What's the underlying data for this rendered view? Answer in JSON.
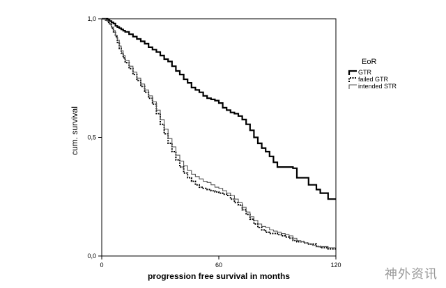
{
  "chart_data": {
    "type": "line",
    "step": true,
    "xlabel": "progression free survival in months",
    "ylabel": "cum. survival",
    "xlim": [
      0,
      120
    ],
    "ylim": [
      0,
      1
    ],
    "x_ticks": [
      0,
      60,
      120
    ],
    "x_tick_labels": [
      "0",
      "60",
      "120"
    ],
    "y_ticks": [
      0,
      0.5,
      1
    ],
    "y_tick_labels": [
      "0,0",
      "0,5",
      "1,0"
    ],
    "grid": false,
    "legend_title": "EoR",
    "legend_position": "right",
    "series": [
      {
        "name": "GTR",
        "style": "solid-thick",
        "color": "#000000",
        "x": [
          0,
          1,
          2,
          3,
          4,
          5,
          6,
          7,
          8,
          9,
          10,
          11,
          12,
          14,
          16,
          18,
          20,
          22,
          24,
          26,
          28,
          30,
          32,
          34,
          36,
          38,
          40,
          42,
          44,
          46,
          48,
          50,
          52,
          54,
          56,
          58,
          60,
          62,
          64,
          66,
          68,
          70,
          72,
          74,
          76,
          78,
          80,
          82,
          84,
          86,
          88,
          90,
          92,
          94,
          96,
          98,
          100,
          102,
          104,
          106,
          108,
          110,
          112,
          114,
          116,
          118,
          120
        ],
        "y": [
          1.0,
          1.0,
          1.0,
          0.995,
          0.99,
          0.985,
          0.98,
          0.97,
          0.965,
          0.96,
          0.955,
          0.95,
          0.945,
          0.935,
          0.925,
          0.915,
          0.905,
          0.895,
          0.88,
          0.87,
          0.86,
          0.845,
          0.83,
          0.82,
          0.8,
          0.78,
          0.765,
          0.745,
          0.73,
          0.71,
          0.7,
          0.69,
          0.675,
          0.665,
          0.66,
          0.655,
          0.645,
          0.625,
          0.615,
          0.605,
          0.6,
          0.59,
          0.575,
          0.555,
          0.53,
          0.5,
          0.475,
          0.455,
          0.44,
          0.42,
          0.395,
          0.375,
          0.375,
          0.375,
          0.375,
          0.37,
          0.33,
          0.33,
          0.33,
          0.3,
          0.3,
          0.28,
          0.265,
          0.265,
          0.24,
          0.24,
          0.24
        ]
      },
      {
        "name": "failed GTR",
        "style": "dotted",
        "color": "#000000",
        "x": [
          0,
          1,
          2,
          3,
          4,
          5,
          6,
          7,
          8,
          9,
          10,
          11,
          12,
          14,
          16,
          18,
          20,
          22,
          24,
          26,
          28,
          30,
          32,
          34,
          36,
          38,
          40,
          42,
          44,
          46,
          48,
          50,
          52,
          54,
          56,
          58,
          60,
          62,
          64,
          66,
          68,
          70,
          72,
          74,
          76,
          78,
          80,
          82,
          84,
          86,
          88,
          90,
          92,
          94,
          96,
          98,
          100,
          102,
          104,
          106,
          108,
          110,
          112,
          114,
          116,
          118,
          120
        ],
        "y": [
          1.0,
          1.0,
          0.995,
          0.985,
          0.975,
          0.96,
          0.945,
          0.925,
          0.9,
          0.875,
          0.855,
          0.835,
          0.815,
          0.79,
          0.765,
          0.74,
          0.715,
          0.69,
          0.665,
          0.64,
          0.6,
          0.555,
          0.515,
          0.475,
          0.44,
          0.405,
          0.375,
          0.35,
          0.33,
          0.315,
          0.3,
          0.29,
          0.285,
          0.28,
          0.275,
          0.27,
          0.265,
          0.26,
          0.255,
          0.24,
          0.225,
          0.215,
          0.195,
          0.175,
          0.155,
          0.135,
          0.12,
          0.11,
          0.1,
          0.095,
          0.095,
          0.09,
          0.085,
          0.08,
          0.075,
          0.065,
          0.06,
          0.06,
          0.055,
          0.05,
          0.05,
          0.04,
          0.035,
          0.035,
          0.03,
          0.03,
          0.03
        ]
      },
      {
        "name": "intended STR",
        "style": "solid-thin",
        "color": "#555555",
        "x": [
          0,
          1,
          2,
          3,
          4,
          5,
          6,
          7,
          8,
          9,
          10,
          11,
          12,
          14,
          16,
          18,
          20,
          22,
          24,
          26,
          28,
          30,
          32,
          34,
          36,
          38,
          40,
          42,
          44,
          46,
          48,
          50,
          52,
          54,
          56,
          58,
          60,
          62,
          64,
          66,
          68,
          70,
          72,
          74,
          76,
          78,
          80,
          82,
          84,
          86,
          88,
          90,
          92,
          94,
          96,
          98,
          100,
          102,
          104,
          106,
          108,
          110,
          112,
          114,
          116,
          118,
          120
        ],
        "y": [
          1.0,
          1.0,
          0.995,
          0.99,
          0.98,
          0.965,
          0.95,
          0.93,
          0.91,
          0.885,
          0.865,
          0.845,
          0.825,
          0.8,
          0.775,
          0.75,
          0.725,
          0.7,
          0.675,
          0.65,
          0.615,
          0.575,
          0.535,
          0.495,
          0.46,
          0.425,
          0.4,
          0.38,
          0.36,
          0.345,
          0.335,
          0.325,
          0.315,
          0.31,
          0.3,
          0.29,
          0.285,
          0.275,
          0.265,
          0.255,
          0.24,
          0.225,
          0.205,
          0.185,
          0.165,
          0.15,
          0.135,
          0.125,
          0.12,
          0.11,
          0.105,
          0.1,
          0.095,
          0.09,
          0.085,
          0.075,
          0.065,
          0.06,
          0.055,
          0.05,
          0.045,
          0.04,
          0.04,
          0.04,
          0.035,
          0.035,
          0.035
        ]
      }
    ]
  },
  "watermark": "神外资讯"
}
